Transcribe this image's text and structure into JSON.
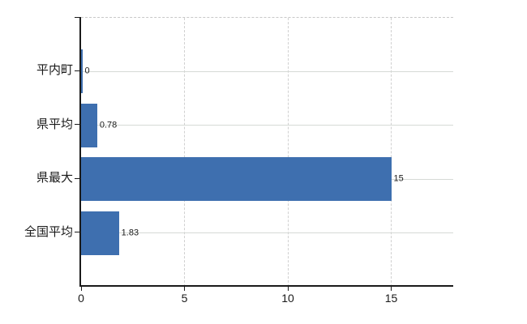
{
  "chart_data": {
    "type": "bar",
    "orientation": "horizontal",
    "title": "",
    "categories": [
      "平内町",
      "県平均",
      "県最大",
      "全国平均"
    ],
    "values": [
      0,
      0.78,
      15,
      1.83
    ],
    "value_labels": [
      "0",
      "0.78",
      "15",
      "1.83"
    ],
    "xlabel": "",
    "ylabel": "",
    "xlim": [
      0,
      18
    ],
    "x_ticks": [
      0,
      5,
      10,
      15
    ],
    "x_tick_labels": [
      "0",
      "5",
      "10",
      "15"
    ],
    "grid": "on",
    "legend": "none",
    "colors": {
      "bar": "#3E6FAF",
      "axis": "#1a1a1a",
      "text": "#1a1a1a",
      "h_gridline": "#d6dad6",
      "v_gridline": "#d0d0d0",
      "plot_top_border": "#c8c8c8",
      "background": "#ffffff"
    }
  }
}
